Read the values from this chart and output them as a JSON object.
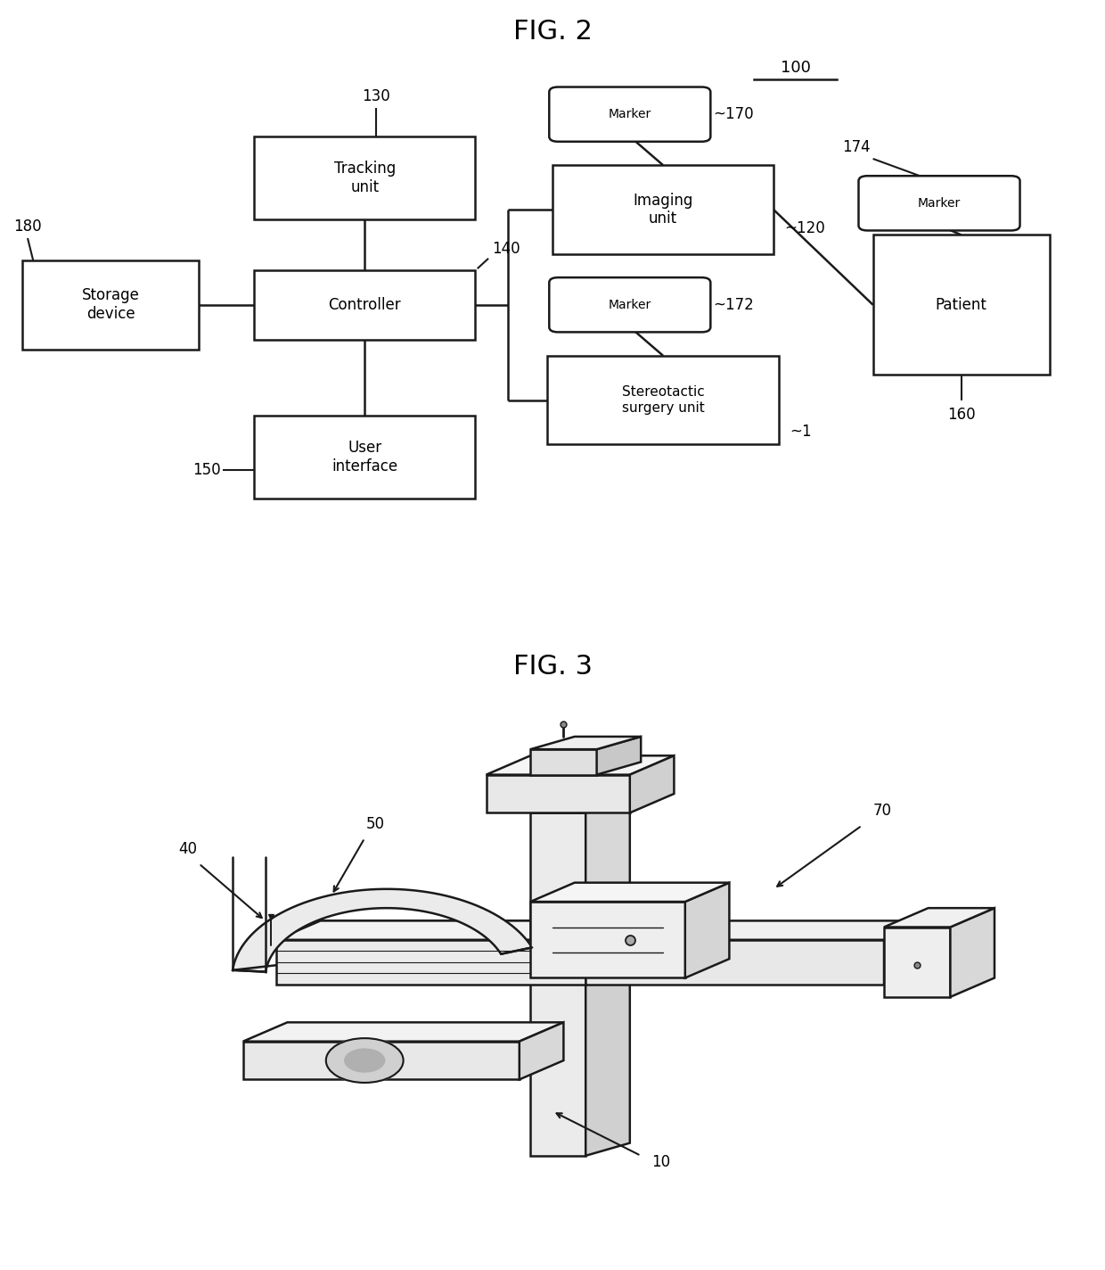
{
  "fig2_title": "FIG. 2",
  "fig3_title": "FIG. 3",
  "bg_color": "#ffffff",
  "line_color": "#1a1a1a",
  "box_color": "#ffffff",
  "box_edge_color": "#1a1a1a",
  "label_100": "100",
  "label_130": "130",
  "label_140": "140",
  "label_150": "150",
  "label_160": "160",
  "label_170": "170",
  "label_172": "172",
  "label_174": "174",
  "label_180": "180",
  "label_120": "120",
  "label_1": "1",
  "box_tracking": "Tracking\nunit",
  "box_controller": "Controller",
  "box_user": "User\ninterface",
  "box_storage": "Storage\ndevice",
  "box_imaging": "Imaging\nunit",
  "box_stereo": "Stereotactic\nsurgery unit",
  "box_patient": "Patient",
  "box_marker": "Marker",
  "label_10": "10",
  "label_40": "40",
  "label_50": "50",
  "label_70": "70"
}
